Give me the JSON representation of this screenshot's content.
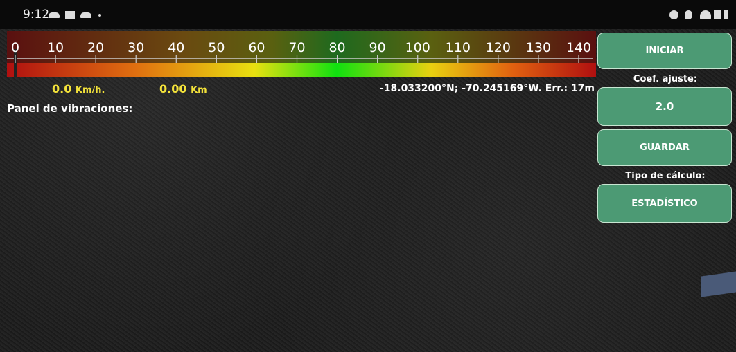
{
  "status_bar": {
    "time": "9:12"
  },
  "gauge": {
    "ticks": [
      0,
      10,
      20,
      30,
      40,
      50,
      60,
      70,
      80,
      90,
      100,
      110,
      120,
      130,
      140
    ]
  },
  "readouts": {
    "speed": "0.0",
    "speed_unit": "Km/h.",
    "distance": "0.00",
    "distance_unit": "Km",
    "position": "-18.033200°N; -70.245169°W. Err.: 17m"
  },
  "panel": {
    "title": "Panel de vibraciones:"
  },
  "controls": {
    "start_button": "INICIAR",
    "coef_label": "Coef. ajuste:",
    "coef_value": "2.0",
    "save_button": "GUARDAR",
    "calc_label": "Tipo de cálculo:",
    "calc_button": "ESTADÍSTICO"
  }
}
